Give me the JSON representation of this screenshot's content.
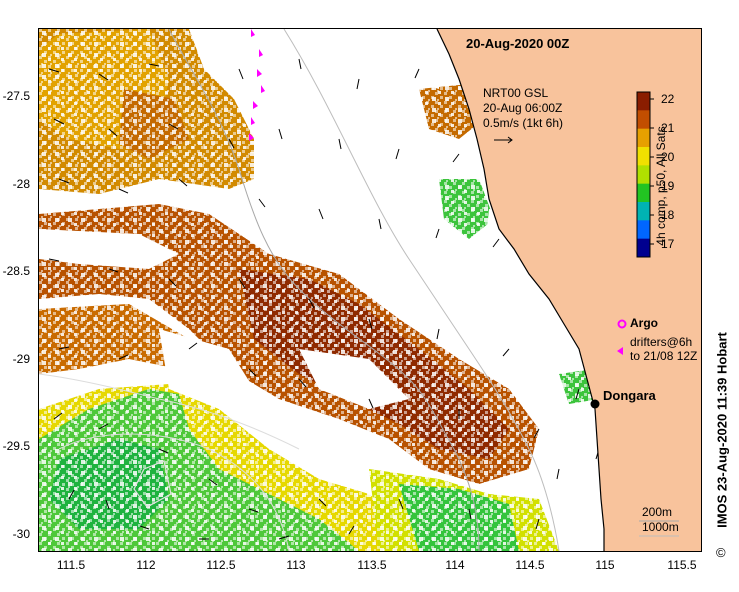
{
  "header": {
    "date": "20-Aug-2020 00Z"
  },
  "current_legend": {
    "line1": "NRT00 GSL",
    "line2": "20-Aug 06:00Z",
    "line3": "0.5m/s (1kt 6h)"
  },
  "colorbar": {
    "title": "4h comp, p50, All Sats",
    "ticks": [
      "22",
      "21",
      "20",
      "19",
      "18",
      "17"
    ],
    "colors": [
      "#8a1d00",
      "#c24e00",
      "#e6a000",
      "#f0e000",
      "#b0e000",
      "#22c422",
      "#00b3b3",
      "#0066ff",
      "#00008f"
    ]
  },
  "axes": {
    "lat_ticks": [
      "-27.5",
      "-28",
      "-28.5",
      "-29",
      "-29.5",
      "-30"
    ],
    "lon_ticks": [
      "111.5",
      "112",
      "112.5",
      "113",
      "113.5",
      "114",
      "114.5",
      "115",
      "115.5"
    ]
  },
  "legend": {
    "argo": "Argo",
    "drifters_line1": "drifters@6h",
    "drifters_line2": "to 21/08 12Z"
  },
  "place": {
    "name": "Dongara"
  },
  "isobaths": {
    "a": "200m",
    "b": "1000m"
  },
  "credit": "IMOS 23-Aug-2020 11:39 Hobart",
  "copyright": "©",
  "colors": {
    "land": "#f8c39c",
    "argo": "#ff00ff",
    "coast": "#000000"
  }
}
